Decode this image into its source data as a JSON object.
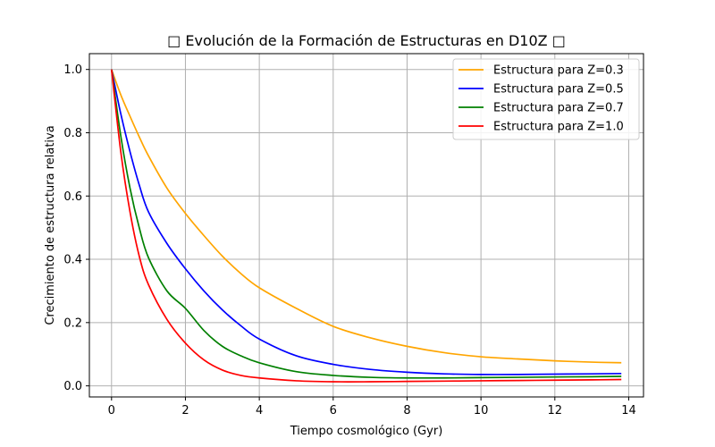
{
  "chart_data": {
    "type": "line",
    "title": "□ Evolución de la Formación de Estructuras en D10Z □",
    "xlabel": "Tiempo cosmológico (Gyr)",
    "ylabel": "Crecimiento de estructura relativa",
    "xlim": [
      -0.6,
      14.4
    ],
    "ylim": [
      -0.035,
      1.05
    ],
    "xticks": [
      0,
      2,
      4,
      6,
      8,
      10,
      12,
      14
    ],
    "yticks": [
      0.0,
      0.2,
      0.4,
      0.6,
      0.8,
      1.0
    ],
    "xtick_labels": [
      "0",
      "2",
      "4",
      "6",
      "8",
      "10",
      "12",
      "14"
    ],
    "ytick_labels": [
      "0.0",
      "0.2",
      "0.4",
      "0.6",
      "0.8",
      "1.0"
    ],
    "grid": true,
    "legend_position": "top-right",
    "x": [
      0,
      0.25,
      0.5,
      0.75,
      1,
      1.5,
      2,
      2.5,
      3,
      3.5,
      4,
      5,
      6,
      7,
      8,
      9,
      10,
      11,
      12,
      13,
      13.8
    ],
    "series": [
      {
        "name": "Estructura para Z=0.3",
        "color": "#ffa500",
        "values": [
          1.0,
          0.92,
          0.852,
          0.787,
          0.727,
          0.625,
          0.545,
          0.475,
          0.41,
          0.355,
          0.31,
          0.245,
          0.188,
          0.152,
          0.125,
          0.105,
          0.092,
          0.085,
          0.079,
          0.075,
          0.073
        ]
      },
      {
        "name": "Estructura para Z=0.5",
        "color": "#0000ff",
        "values": [
          1.0,
          0.86,
          0.74,
          0.635,
          0.55,
          0.45,
          0.37,
          0.3,
          0.24,
          0.19,
          0.148,
          0.095,
          0.068,
          0.052,
          0.043,
          0.038,
          0.036,
          0.036,
          0.037,
          0.038,
          0.039
        ]
      },
      {
        "name": "Estructura para Z=0.7",
        "color": "#008000",
        "values": [
          1.0,
          0.79,
          0.625,
          0.5,
          0.405,
          0.3,
          0.245,
          0.175,
          0.125,
          0.095,
          0.073,
          0.045,
          0.033,
          0.027,
          0.025,
          0.025,
          0.026,
          0.027,
          0.028,
          0.029,
          0.03
        ]
      },
      {
        "name": "Estructura para Z=1.0",
        "color": "#ff0000",
        "values": [
          1.0,
          0.74,
          0.55,
          0.41,
          0.32,
          0.21,
          0.135,
          0.082,
          0.05,
          0.033,
          0.025,
          0.016,
          0.013,
          0.013,
          0.014,
          0.015,
          0.016,
          0.017,
          0.018,
          0.019,
          0.02
        ]
      }
    ]
  }
}
